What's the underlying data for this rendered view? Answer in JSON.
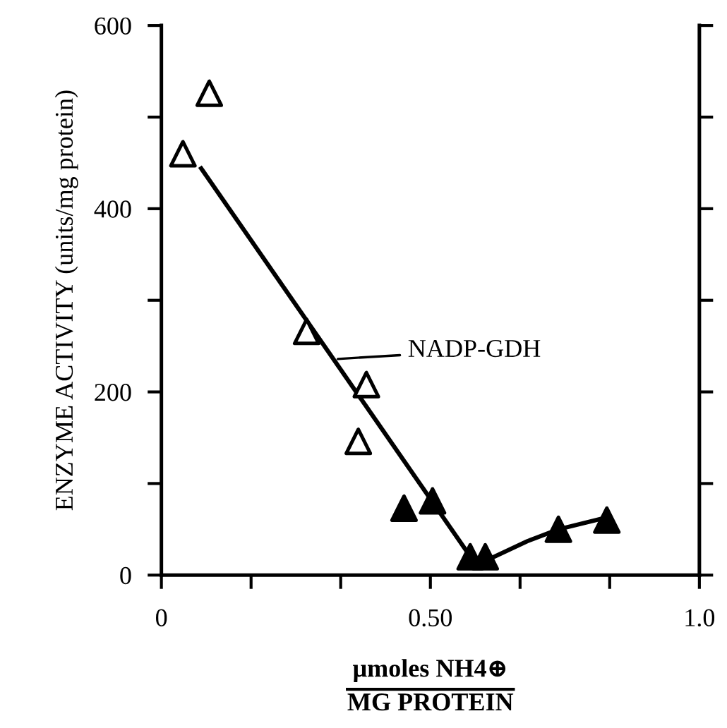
{
  "chart_data": {
    "type": "scatter",
    "xlabel": "μmoles NH4⊕\nMG PROTEIN",
    "ylabel": "ENZYME ACTIVITY (units/mg protein)",
    "xlim": [
      0,
      1.0
    ],
    "ylim": [
      0,
      600
    ],
    "xticks": [
      0,
      {
        "value": 0.1667,
        "label": null
      },
      {
        "value": 0.3333,
        "label": null
      },
      {
        "value": 0.5,
        "label": "0.50"
      },
      {
        "value": 0.6667,
        "label": null
      },
      {
        "value": 0.8333,
        "label": null
      },
      {
        "value": 1.0,
        "label": "1.0"
      }
    ],
    "yticks": [
      0,
      {
        "value": 100,
        "label": null
      },
      200,
      {
        "value": 300,
        "label": null
      },
      400,
      {
        "value": 500,
        "label": null
      },
      600
    ],
    "grid": false,
    "legend": false,
    "marker": "triangle",
    "annotations": [
      {
        "text": "NADP-GDH",
        "x": 0.328,
        "y": 236
      }
    ],
    "series": [
      {
        "type": "scatter",
        "color": "#ffffff",
        "x": [
          0.04,
          0.089,
          0.27,
          0.381,
          0.366
        ],
        "values": [
          460,
          526,
          266,
          208,
          146
        ]
      },
      {
        "type": "scatter",
        "color": "#000000",
        "x": [
          0.451,
          0.504,
          0.574,
          0.602,
          0.738,
          0.828
        ],
        "values": [
          73,
          81,
          20,
          20,
          50,
          60
        ]
      },
      {
        "type": "line",
        "color": "#000000",
        "marker": "none",
        "x": [
          0.074,
          0.577
        ],
        "values": [
          444,
          18
        ]
      },
      {
        "type": "line",
        "color": "#000000",
        "marker": "none",
        "x": [
          0.611,
          0.68,
          0.738,
          0.828
        ],
        "values": [
          18,
          37,
          50,
          63
        ]
      }
    ]
  }
}
